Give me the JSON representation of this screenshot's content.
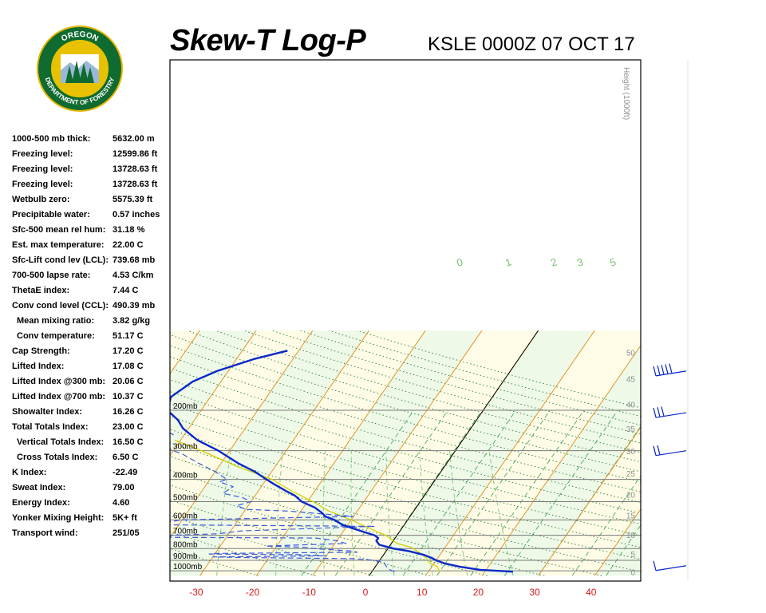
{
  "header": {
    "title": "Skew-T Log-P",
    "station": "KSLE 0000Z 07 OCT 17"
  },
  "logo": {
    "top_text": "OREGON",
    "bottom_text": "DEPARTMENT OF FORESTRY"
  },
  "indices": [
    {
      "label": "1000-500 mb thick:",
      "value": "5632.00 m"
    },
    {
      "label": "Freezing level:",
      "value": "12599.86 ft"
    },
    {
      "label": "Freezing level:",
      "value": "13728.63 ft"
    },
    {
      "label": "Freezing level:",
      "value": "13728.63 ft"
    },
    {
      "label": "Wetbulb zero:",
      "value": "5575.39 ft"
    },
    {
      "label": "Precipitable water:",
      "value": "0.57 inches"
    },
    {
      "label": "Sfc-500 mean rel hum:",
      "value": "31.18 %"
    },
    {
      "label": "Est. max temperature:",
      "value": "22.00 C"
    },
    {
      "label": "Sfc-Lift cond lev (LCL):",
      "value": "739.68 mb"
    },
    {
      "label": "700-500 lapse rate:",
      "value": "4.53 C/km"
    },
    {
      "label": "ThetaE index:",
      "value": "7.44 C"
    },
    {
      "label": "Conv cond level (CCL):",
      "value": "490.39 mb"
    },
    {
      "label": "Mean mixing ratio:",
      "value": "3.82 g/kg",
      "indent": true
    },
    {
      "label": "Conv temperature:",
      "value": "51.17 C",
      "indent": true
    },
    {
      "label": "Cap Strength:",
      "value": "17.20 C"
    },
    {
      "label": "Lifted Index:",
      "value": "17.08 C"
    },
    {
      "label": "Lifted Index @300 mb:",
      "value": "20.06 C"
    },
    {
      "label": "Lifted Index @700 mb:",
      "value": "10.37 C"
    },
    {
      "label": "Showalter Index:",
      "value": "16.26 C"
    },
    {
      "label": "Total Totals Index:",
      "value": "23.00 C"
    },
    {
      "label": "Vertical Totals Index:",
      "value": "16.50 C",
      "indent": true
    },
    {
      "label": "Cross Totals Index:",
      "value": "6.50 C",
      "indent": true
    },
    {
      "label": "K Index:",
      "value": "-22.49"
    },
    {
      "label": "Sweat Index:",
      "value": "79.00"
    },
    {
      "label": "Energy Index:",
      "value": "4.60"
    },
    {
      "label": "Yonker Mixing Height:",
      "value": "5K+ ft"
    },
    {
      "label": "Transport wind:",
      "value": "251/05"
    }
  ],
  "chart_data": {
    "type": "line",
    "title": "Skew-T Log-P",
    "xlabel": "",
    "ylabel": "",
    "x_ticks": [
      -30,
      -20,
      -10,
      0,
      10,
      20,
      30,
      40
    ],
    "pressure_levels": [
      {
        "p": 200,
        "label": "200mb"
      },
      {
        "p": 300,
        "label": "300mb"
      },
      {
        "p": 400,
        "label": "400mb"
      },
      {
        "p": 500,
        "label": "500mb"
      },
      {
        "p": 600,
        "label": "600mb"
      },
      {
        "p": 700,
        "label": "700mb"
      },
      {
        "p": 800,
        "label": "800mb"
      },
      {
        "p": 900,
        "label": "900mb"
      },
      {
        "p": 1000,
        "label": "1000mb"
      }
    ],
    "height_axis": {
      "label": "Height (1000ft)",
      "ticks": [
        {
          "p": 1012,
          "v": "0"
        },
        {
          "p": 843,
          "v": "5"
        },
        {
          "p": 697,
          "v": "10"
        },
        {
          "p": 572,
          "v": "15"
        },
        {
          "p": 466,
          "v": "20"
        },
        {
          "p": 376,
          "v": "25"
        },
        {
          "p": 301,
          "v": "30"
        },
        {
          "p": 240,
          "v": "35"
        },
        {
          "p": 188,
          "v": "40"
        },
        {
          "p": 146,
          "v": "45"
        },
        {
          "p": 112,
          "v": "50"
        }
      ]
    },
    "mixing_ratio_labels": [
      "0",
      "1",
      "2",
      "3",
      "5"
    ],
    "series": [
      {
        "color": "#0a28c8",
        "points": [
          [
            1008,
            25
          ],
          [
            990,
            19
          ],
          [
            960,
            15
          ],
          [
            930,
            12
          ],
          [
            900,
            10
          ],
          [
            880,
            9
          ],
          [
            850,
            7
          ],
          [
            820,
            4
          ],
          [
            800,
            1
          ],
          [
            770,
            -2
          ],
          [
            740,
            -3
          ],
          [
            720,
            -3
          ],
          [
            700,
            -4
          ],
          [
            680,
            -6
          ],
          [
            650,
            -9
          ],
          [
            630,
            -11
          ],
          [
            600,
            -13
          ],
          [
            580,
            -15
          ],
          [
            560,
            -16
          ],
          [
            530,
            -18
          ],
          [
            500,
            -21
          ],
          [
            470,
            -23
          ],
          [
            450,
            -25
          ],
          [
            420,
            -28
          ],
          [
            400,
            -30
          ],
          [
            370,
            -33
          ],
          [
            340,
            -37
          ],
          [
            300,
            -42
          ],
          [
            270,
            -47
          ],
          [
            240,
            -51
          ],
          [
            220,
            -53
          ],
          [
            200,
            -56
          ],
          [
            175,
            -57
          ],
          [
            150,
            -55
          ],
          [
            135,
            -52
          ],
          [
            120,
            -47
          ],
          [
            110,
            -42
          ]
        ]
      },
      {
        "color": "#3c5adc",
        "dashed": true,
        "points": [
          [
            1008,
            4
          ],
          [
            990,
            3
          ],
          [
            960,
            2
          ],
          [
            920,
            1
          ],
          [
            900,
            -1
          ],
          [
            885,
            -5
          ],
          [
            875,
            -25
          ],
          [
            870,
            -30
          ],
          [
            860,
            -10
          ],
          [
            850,
            -15
          ],
          [
            845,
            -31
          ],
          [
            840,
            -30
          ],
          [
            830,
            -5
          ],
          [
            820,
            -6
          ],
          [
            800,
            -13
          ],
          [
            790,
            -15
          ],
          [
            780,
            -22
          ],
          [
            760,
            -8
          ],
          [
            740,
            -10
          ],
          [
            720,
            -14
          ],
          [
            715,
            -40
          ],
          [
            700,
            -40
          ],
          [
            690,
            -32
          ],
          [
            670,
            -28
          ],
          [
            640,
            -5
          ],
          [
            630,
            -45
          ],
          [
            600,
            -40
          ],
          [
            580,
            -10
          ],
          [
            550,
            -22
          ],
          [
            540,
            -30
          ],
          [
            520,
            -32
          ],
          [
            500,
            -30
          ],
          [
            480,
            -32
          ],
          [
            460,
            -36
          ],
          [
            430,
            -35
          ],
          [
            410,
            -38
          ],
          [
            400,
            -37
          ],
          [
            370,
            -40
          ],
          [
            340,
            -44
          ],
          [
            310,
            -48
          ],
          [
            300,
            -50
          ],
          [
            280,
            -53
          ],
          [
            255,
            -52
          ],
          [
            240,
            -55
          ],
          [
            220,
            -57
          ],
          [
            200,
            -62
          ],
          [
            175,
            -64
          ],
          [
            160,
            -65
          ],
          [
            150,
            -66
          ],
          [
            140,
            -69
          ],
          [
            120,
            -72
          ],
          [
            110,
            -76
          ]
        ]
      }
    ],
    "parcel": {
      "color": "#d2d200",
      "points": [
        [
          1008,
          12
        ],
        [
          960,
          11
        ],
        [
          920,
          9
        ],
        [
          880,
          8
        ],
        [
          830,
          6
        ],
        [
          790,
          4
        ],
        [
          760,
          1
        ],
        [
          740,
          0
        ],
        [
          700,
          -2
        ],
        [
          650,
          -6
        ],
        [
          600,
          -10
        ],
        [
          550,
          -15
        ],
        [
          500,
          -19
        ],
        [
          450,
          -24
        ],
        [
          400,
          -29
        ],
        [
          350,
          -37
        ],
        [
          300,
          -45
        ],
        [
          270,
          -51
        ]
      ]
    },
    "wind_barbs": [
      {
        "p": 950,
        "speed": 5
      },
      {
        "p": 300,
        "speed": 20
      },
      {
        "p": 205,
        "speed": 30
      },
      {
        "p": 135,
        "speed": 45
      }
    ]
  }
}
